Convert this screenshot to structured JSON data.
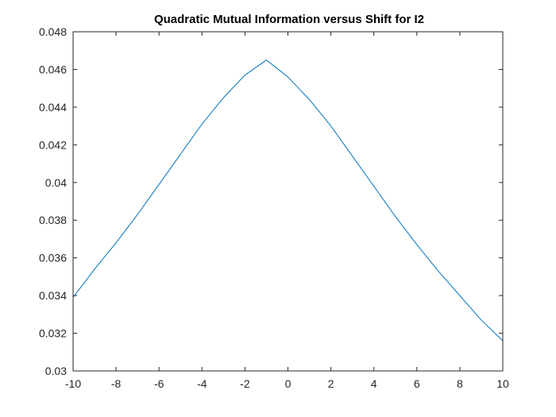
{
  "chart_data": {
    "type": "line",
    "title": "Quadratic Mutual Information versus Shift for I2",
    "xlabel": "",
    "ylabel": "",
    "xlim": [
      -10,
      10
    ],
    "ylim": [
      0.03,
      0.048
    ],
    "x_ticks": [
      -10,
      -8,
      -6,
      -4,
      -2,
      0,
      2,
      4,
      6,
      8,
      10
    ],
    "x_tick_labels": [
      "-10",
      "-8",
      "-6",
      "-4",
      "-2",
      "0",
      "2",
      "4",
      "6",
      "8",
      "10"
    ],
    "y_ticks": [
      0.03,
      0.032,
      0.034,
      0.036,
      0.038,
      0.04,
      0.042,
      0.044,
      0.046,
      0.048
    ],
    "y_tick_labels": [
      "0.03",
      "0.032",
      "0.034",
      "0.036",
      "0.038",
      "0.04",
      "0.042",
      "0.044",
      "0.046",
      "0.048"
    ],
    "grid": false,
    "box": true,
    "series": [
      {
        "color": "#0072BD",
        "x": [
          -10,
          -9,
          -8,
          -7,
          -6,
          -5,
          -4,
          -3,
          -2,
          -1,
          0,
          1,
          2,
          3,
          4,
          5,
          6,
          7,
          8,
          9,
          10
        ],
        "y": [
          0.0339,
          0.0354,
          0.0368,
          0.0383,
          0.0399,
          0.0415,
          0.0431,
          0.0445,
          0.0457,
          0.0465,
          0.0456,
          0.0444,
          0.043,
          0.0414,
          0.0398,
          0.0382,
          0.0367,
          0.0353,
          0.034,
          0.0327,
          0.0316
        ]
      }
    ]
  }
}
